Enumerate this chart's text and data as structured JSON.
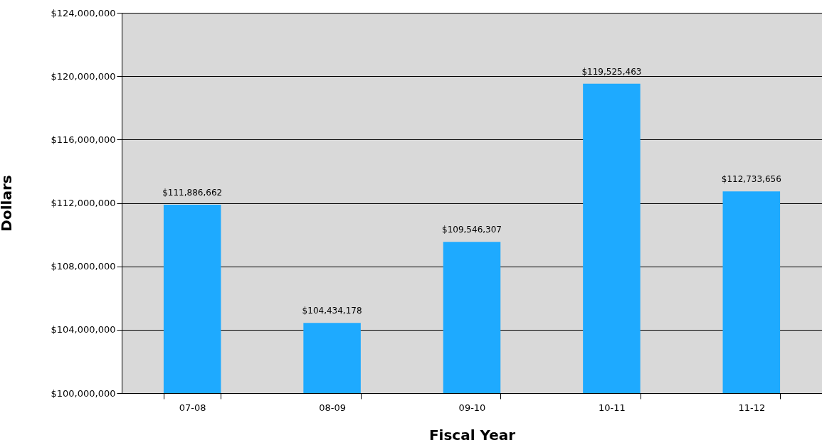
{
  "chart_data": {
    "type": "bar",
    "xlabel": "Fiscal Year",
    "ylabel": "Dollars",
    "categories": [
      "07-08",
      "08-09",
      "09-10",
      "10-11",
      "11-12"
    ],
    "values": [
      111886662,
      104434178,
      109546307,
      119525463,
      112733656
    ],
    "value_labels": [
      "$111,886,662",
      "$104,434,178",
      "$109,546,307",
      "$119,525,463",
      "$112,733,656"
    ],
    "color": "#1eaaff",
    "ylim": [
      100000000,
      124000000
    ],
    "yticks": [
      {
        "value": 100000000,
        "label": "$100,000,000"
      },
      {
        "value": 104000000,
        "label": "$104,000,000"
      },
      {
        "value": 108000000,
        "label": "$108,000,000"
      },
      {
        "value": 112000000,
        "label": "$112,000,000"
      },
      {
        "value": 116000000,
        "label": "$116,000,000"
      },
      {
        "value": 120000000,
        "label": "$120,000,000"
      },
      {
        "value": 124000000,
        "label": "$124,000,000"
      }
    ],
    "grid": "y"
  }
}
